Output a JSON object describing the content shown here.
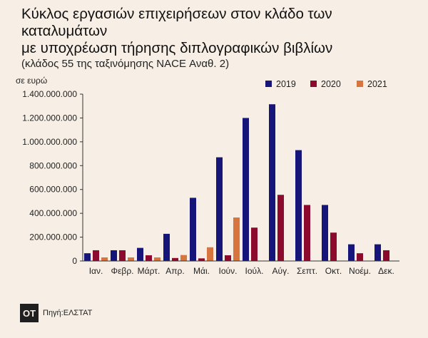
{
  "title_line1": "Κύκλος εργασιών επιχειρήσεων στον κλάδο των καταλυμάτων",
  "title_line2": "με υποχρέωση τήρησης διπλογραφικών βιβλίων",
  "subtitle": "(κλάδος 55 της ταξινόμησης NACE Αναθ. 2)",
  "logo": "OT",
  "source": "Πηγή:ΕΛΣΤΑΤ",
  "colors": {
    "2019": "#16167a",
    "2020": "#8b0a2e",
    "2021": "#d8743e",
    "axis": "#333333",
    "grid": "#cccccc"
  },
  "chart_data": {
    "type": "bar",
    "ylabel": "σε ευρώ",
    "categories": [
      "Ιαν.",
      "Φεβρ.",
      "Μάρτ.",
      "Απρ.",
      "Μάι.",
      "Ιούν.",
      "Ιούλ.",
      "Αύγ.",
      "Σεπτ.",
      "Οκτ.",
      "Νοέμ.",
      "Δεκ."
    ],
    "series": [
      {
        "name": "2019",
        "color": "#16167a",
        "values": [
          65000000,
          90000000,
          110000000,
          228000000,
          530000000,
          870000000,
          1200000000,
          1315000000,
          930000000,
          470000000,
          140000000,
          140000000
        ]
      },
      {
        "name": "2020",
        "color": "#8b0a2e",
        "values": [
          90000000,
          90000000,
          48000000,
          25000000,
          22000000,
          48000000,
          280000000,
          555000000,
          470000000,
          238000000,
          65000000,
          90000000
        ]
      },
      {
        "name": "2021",
        "color": "#d8743e",
        "values": [
          30000000,
          30000000,
          30000000,
          50000000,
          115000000,
          365000000,
          null,
          null,
          null,
          null,
          null,
          null
        ]
      }
    ],
    "ylim": [
      0,
      1400000000
    ],
    "yticks": [
      {
        "value": 0,
        "label": "0"
      },
      {
        "value": 200000000,
        "label": "200.000.000"
      },
      {
        "value": 400000000,
        "label": "400.000.000"
      },
      {
        "value": 600000000,
        "label": "600.000.000"
      },
      {
        "value": 800000000,
        "label": "800.000.000"
      },
      {
        "value": 1000000000,
        "label": "1.000.000.000"
      },
      {
        "value": 1200000000,
        "label": "1.200.000.000"
      },
      {
        "value": 1400000000,
        "label": "1.400.000.000"
      }
    ],
    "legend_position": "top-right",
    "grid": false
  }
}
